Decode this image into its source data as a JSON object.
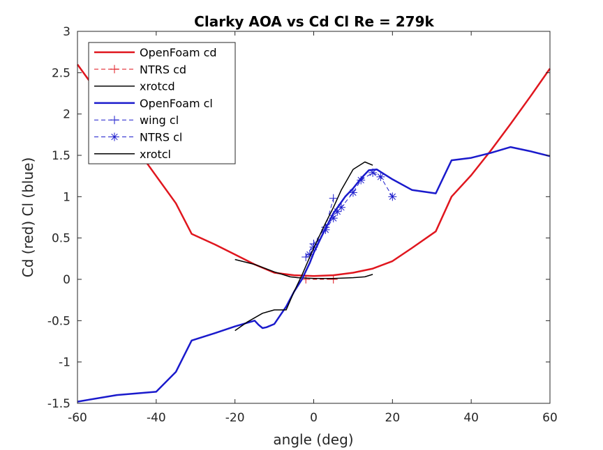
{
  "chart_data": {
    "type": "line",
    "title": "Clarky AOA vs Cd Cl Re = 279k",
    "xlabel": "angle (deg)",
    "ylabel": "Cd (red) Cl (blue)",
    "xlim": [
      -60,
      60
    ],
    "ylim": [
      -1.5,
      3
    ],
    "xticks": [
      -60,
      -40,
      -20,
      0,
      20,
      40,
      60
    ],
    "yticks": [
      -1.5,
      -1,
      -0.5,
      0,
      0.5,
      1,
      1.5,
      2,
      2.5,
      3
    ],
    "xtick_labels": [
      "-60",
      "-40",
      "-20",
      "0",
      "20",
      "40",
      "60"
    ],
    "ytick_labels": [
      "-1.5",
      "-1",
      "-0.5",
      "0",
      "0.5",
      "1",
      "1.5",
      "2",
      "2.5",
      "3"
    ],
    "grid": false,
    "legend_position": "top-left",
    "series": [
      {
        "name": "OpenFoam cd",
        "color": "#e0161e",
        "style": "solid",
        "marker": "none",
        "width": 2.5,
        "x": [
          -60,
          -55,
          -50,
          -45,
          -40,
          -35,
          -31,
          -25,
          -20,
          -15,
          -10,
          -5,
          0,
          5,
          10,
          15,
          20,
          25,
          31,
          35,
          40,
          45,
          50,
          55,
          60
        ],
        "y": [
          2.6,
          2.27,
          1.9,
          1.58,
          1.25,
          0.92,
          0.55,
          0.42,
          0.3,
          0.18,
          0.08,
          0.05,
          0.04,
          0.05,
          0.08,
          0.13,
          0.22,
          0.38,
          0.58,
          1.0,
          1.26,
          1.56,
          1.88,
          2.21,
          2.55
        ]
      },
      {
        "name": "NTRS cd",
        "color": "#e0161e",
        "style": "dashed",
        "marker": "plus",
        "width": 1,
        "x": [
          -2,
          5
        ],
        "y": [
          0.0,
          0.0
        ]
      },
      {
        "name": "xrotcd",
        "color": "#000000",
        "style": "solid",
        "marker": "none",
        "width": 1.5,
        "x": [
          -20,
          -15,
          -10,
          -6,
          -4,
          0,
          5,
          10,
          13,
          15
        ],
        "y": [
          0.24,
          0.18,
          0.09,
          0.03,
          0.02,
          0.01,
          0.01,
          0.02,
          0.03,
          0.06
        ]
      },
      {
        "name": "OpenFoam cl",
        "color": "#1a1acc",
        "style": "solid",
        "marker": "none",
        "width": 2.5,
        "x": [
          -60,
          -50,
          -40,
          -35,
          -31,
          -25,
          -20,
          -15,
          -14,
          -13,
          -12,
          -10,
          -7,
          -5,
          -3,
          -1,
          0,
          2,
          5,
          8,
          10,
          12,
          14,
          16,
          18,
          20,
          25,
          31,
          35,
          40,
          45,
          50,
          55,
          60
        ],
        "y": [
          -1.48,
          -1.4,
          -1.36,
          -1.12,
          -0.74,
          -0.65,
          -0.57,
          -0.5,
          -0.55,
          -0.59,
          -0.58,
          -0.54,
          -0.33,
          -0.15,
          0.0,
          0.2,
          0.32,
          0.52,
          0.8,
          1.0,
          1.1,
          1.22,
          1.32,
          1.33,
          1.27,
          1.21,
          1.08,
          1.04,
          1.44,
          1.47,
          1.53,
          1.6,
          1.55,
          1.49
        ]
      },
      {
        "name": "wing cl",
        "color": "#1a1acc",
        "style": "dashed",
        "marker": "plus",
        "width": 1,
        "x": [
          -2,
          0,
          3,
          5
        ],
        "y": [
          0.27,
          0.43,
          0.63,
          0.98
        ]
      },
      {
        "name": "NTRS cl",
        "color": "#1a1acc",
        "style": "dashed",
        "marker": "star",
        "width": 1,
        "x": [
          -1,
          0,
          3,
          5,
          6,
          7,
          10,
          12,
          15,
          17,
          20
        ],
        "y": [
          0.3,
          0.39,
          0.6,
          0.74,
          0.82,
          0.87,
          1.05,
          1.2,
          1.29,
          1.24,
          1.0
        ]
      },
      {
        "name": "xrotcl",
        "color": "#000000",
        "style": "solid",
        "marker": "none",
        "width": 1.5,
        "x": [
          -20,
          -17,
          -13,
          -10,
          -7,
          -5,
          -3,
          0,
          3,
          5,
          7,
          10,
          13,
          15
        ],
        "y": [
          -0.62,
          -0.52,
          -0.41,
          -0.37,
          -0.37,
          -0.15,
          0.05,
          0.38,
          0.68,
          0.87,
          1.08,
          1.33,
          1.42,
          1.38
        ]
      }
    ]
  }
}
